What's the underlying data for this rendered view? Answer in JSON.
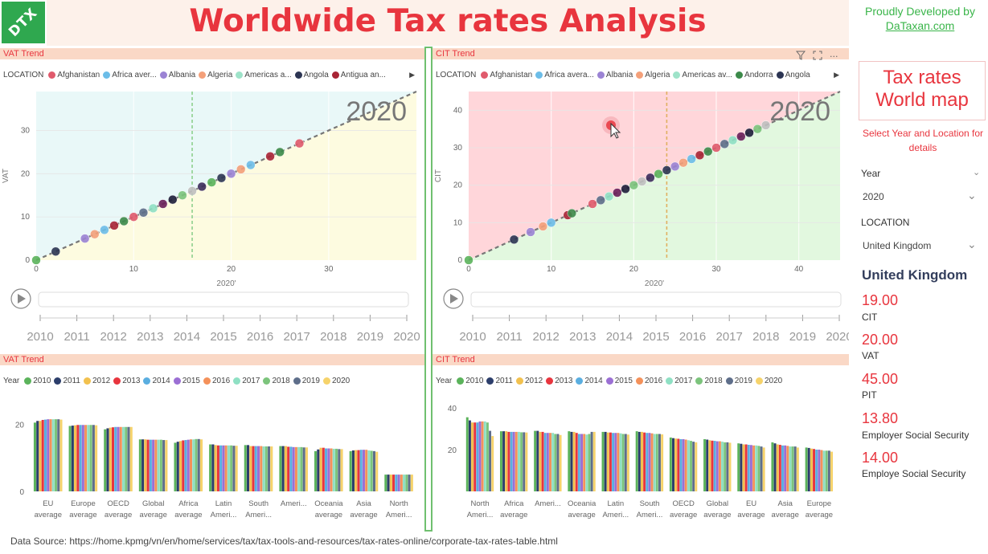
{
  "header": {
    "logo_text": "DTX",
    "title": "Worldwide Tax rates Analysis",
    "credit_line1": "Proudly Developed by",
    "credit_link": "DaTaxan.com"
  },
  "colors": {
    "accent": "#e8353e",
    "brand_green": "#3ab54a",
    "panel_header_bg": "#fad8c6",
    "title_band_bg": "#fdf1ea"
  },
  "icons": [
    "filter-icon",
    "focus-mode-icon",
    "more-options-icon",
    "play-icon",
    "chevron-down-icon",
    "chevron-right-icon"
  ],
  "panels": {
    "vat_scatter_header": "VAT Trend",
    "cit_scatter_header": "CIT Trend",
    "vat_bar_header": "VAT Trend",
    "cit_bar_header": "CIT Trend"
  },
  "legends": {
    "location_title": "LOCATION",
    "vat_locations": [
      {
        "label": "Afghanistan",
        "color": "#e05a6c"
      },
      {
        "label": "Africa aver...",
        "color": "#6cbde8"
      },
      {
        "label": "Albania",
        "color": "#9b83d4"
      },
      {
        "label": "Algeria",
        "color": "#f4a07a"
      },
      {
        "label": "Americas a...",
        "color": "#9ee3c9"
      },
      {
        "label": "Angola",
        "color": "#2c3553"
      },
      {
        "label": "Antigua an...",
        "color": "#a82435"
      }
    ],
    "cit_locations": [
      {
        "label": "Afghanistan",
        "color": "#e05a6c"
      },
      {
        "label": "Africa avera...",
        "color": "#6cbde8"
      },
      {
        "label": "Albania",
        "color": "#9b83d4"
      },
      {
        "label": "Algeria",
        "color": "#f4a07a"
      },
      {
        "label": "Americas av...",
        "color": "#9ee3c9"
      },
      {
        "label": "Andorra",
        "color": "#3c8a4a"
      },
      {
        "label": "Angola",
        "color": "#2c3553"
      }
    ],
    "year_title": "Year",
    "years": [
      {
        "label": "2010",
        "color": "#5bb35b"
      },
      {
        "label": "2011",
        "color": "#2c3e6b"
      },
      {
        "label": "2012",
        "color": "#f2c14e"
      },
      {
        "label": "2013",
        "color": "#e8353e"
      },
      {
        "label": "2014",
        "color": "#5aaee0"
      },
      {
        "label": "2015",
        "color": "#9b6fd4"
      },
      {
        "label": "2016",
        "color": "#f4915a"
      },
      {
        "label": "2017",
        "color": "#8fe0c4"
      },
      {
        "label": "2018",
        "color": "#7cc47c"
      },
      {
        "label": "2019",
        "color": "#5e6e8a"
      },
      {
        "label": "2020",
        "color": "#f6d36b"
      }
    ]
  },
  "timeline": {
    "years": [
      "2010",
      "2011",
      "2012",
      "2013",
      "2014",
      "2015",
      "2016",
      "2017",
      "2018",
      "2019",
      "2020"
    ]
  },
  "sidebar": {
    "map_title_line1": "Tax rates",
    "map_title_line2": "World map",
    "map_subtitle": "Select Year and Location for details",
    "year_label": "Year",
    "year_value": "2020",
    "location_label": "LOCATION",
    "location_value": "United Kingdom",
    "country": "United Kingdom",
    "kpis": [
      {
        "value": "19.00",
        "label": "CIT"
      },
      {
        "value": "20.00",
        "label": "VAT"
      },
      {
        "value": "45.00",
        "label": "PIT"
      },
      {
        "value": "13.80",
        "label": "Employer Social Security"
      },
      {
        "value": "14.00",
        "label": "Employe Social Security"
      }
    ]
  },
  "footer": {
    "source": "Data Source: https://home.kpmg/vn/en/home/services/tax/tax-tools-and-resources/tax-rates-online/corporate-tax-rates-table.html"
  },
  "chart_data": [
    {
      "type": "scatter",
      "title": "VAT Trend",
      "play_label": "2020",
      "xlabel": "2020'",
      "ylabel": "VAT",
      "xlim": [
        0,
        39
      ],
      "ylim": [
        0,
        39
      ],
      "xticks": [
        0,
        10,
        20,
        30
      ],
      "yticks": [
        0,
        10,
        20,
        30
      ],
      "reference_x": 16,
      "points": [
        [
          0,
          0
        ],
        [
          2,
          2
        ],
        [
          5,
          5
        ],
        [
          6,
          6
        ],
        [
          7,
          7
        ],
        [
          8,
          8
        ],
        [
          9,
          9
        ],
        [
          10,
          10
        ],
        [
          11,
          11
        ],
        [
          12,
          12
        ],
        [
          13,
          13
        ],
        [
          14,
          14
        ],
        [
          15,
          15
        ],
        [
          16,
          16
        ],
        [
          17,
          17
        ],
        [
          18,
          18
        ],
        [
          19,
          19
        ],
        [
          20,
          20
        ],
        [
          21,
          21
        ],
        [
          22,
          22
        ],
        [
          24,
          24
        ],
        [
          25,
          25
        ],
        [
          27,
          27
        ]
      ]
    },
    {
      "type": "scatter",
      "title": "CIT Trend",
      "play_label": "2020",
      "xlabel": "2020'",
      "ylabel": "CIT",
      "xlim": [
        0,
        45
      ],
      "ylim": [
        0,
        45
      ],
      "xticks": [
        0,
        10,
        20,
        30,
        40
      ],
      "yticks": [
        0,
        10,
        20,
        30,
        40
      ],
      "reference_x": 24,
      "points": [
        [
          0,
          0
        ],
        [
          5.5,
          5.5
        ],
        [
          7.5,
          7.5
        ],
        [
          9,
          9
        ],
        [
          10,
          10
        ],
        [
          12,
          12
        ],
        [
          12.5,
          12.5
        ],
        [
          15,
          15
        ],
        [
          16,
          16
        ],
        [
          17,
          17
        ],
        [
          18,
          18
        ],
        [
          19,
          19
        ],
        [
          20,
          20
        ],
        [
          21,
          21
        ],
        [
          22,
          22
        ],
        [
          23,
          23
        ],
        [
          24,
          24
        ],
        [
          25,
          25
        ],
        [
          26,
          26
        ],
        [
          27,
          27
        ],
        [
          28,
          28
        ],
        [
          29,
          29
        ],
        [
          30,
          30
        ],
        [
          31,
          31
        ],
        [
          32,
          32
        ],
        [
          33,
          33
        ],
        [
          34,
          34
        ],
        [
          35,
          35
        ],
        [
          36,
          36
        ]
      ]
    },
    {
      "type": "bar",
      "title": "VAT Trend",
      "ylim": [
        0,
        28
      ],
      "yticks": [
        0,
        20
      ],
      "categories": [
        "EU average",
        "Europe average",
        "OECD average",
        "Global average",
        "Africa average",
        "Latin Ameri...",
        "South Ameri...",
        "Ameri...",
        "Oceania average",
        "Asia average",
        "North Ameri..."
      ],
      "values_by_year": [
        [
          20.5,
          19.5,
          18.5,
          15.5,
          14.5,
          14,
          13.8,
          13.5,
          12,
          12,
          5
        ],
        [
          21,
          19.6,
          18.8,
          15.5,
          14.8,
          14,
          13.8,
          13.5,
          12.5,
          12.2,
          5
        ],
        [
          21,
          19.7,
          19,
          15.5,
          15,
          13.8,
          13.5,
          13.5,
          13,
          12.3,
          5
        ],
        [
          21.3,
          19.8,
          19.1,
          15.4,
          15.2,
          13.7,
          13.5,
          13.3,
          13,
          12.3,
          5
        ],
        [
          21.4,
          19.8,
          19.2,
          15.4,
          15.3,
          13.7,
          13.5,
          13.3,
          12.8,
          12.4,
          5
        ],
        [
          21.5,
          19.8,
          19.2,
          15.4,
          15.4,
          13.7,
          13.5,
          13.2,
          12.8,
          12.4,
          5
        ],
        [
          21.5,
          19.8,
          19.2,
          15.4,
          15.5,
          13.7,
          13.5,
          13.2,
          12.8,
          12.4,
          5
        ],
        [
          21.5,
          19.8,
          19.2,
          15.4,
          15.5,
          13.7,
          13.4,
          13.2,
          12.7,
          12.2,
          5
        ],
        [
          21.5,
          19.8,
          19.2,
          15.4,
          15.6,
          13.7,
          13.4,
          13.2,
          12.7,
          12.1,
          5
        ],
        [
          21.5,
          19.8,
          19.2,
          15.3,
          15.6,
          13.6,
          13.4,
          13.1,
          12.6,
          12,
          5
        ],
        [
          21.4,
          19.7,
          19.2,
          15.3,
          15.5,
          13.6,
          13.4,
          13.1,
          12.6,
          11.8,
          5
        ]
      ]
    },
    {
      "type": "bar",
      "title": "CIT Trend",
      "ylim": [
        0,
        45
      ],
      "yticks": [
        20,
        40
      ],
      "categories": [
        "North Ameri...",
        "Africa average",
        "Ameri...",
        "Oceania average",
        "Latin Ameri...",
        "South Ameri...",
        "OECD average",
        "Global average",
        "EU average",
        "Asia average",
        "Europe average"
      ],
      "values_by_year": [
        [
          35.5,
          28.8,
          29,
          28.8,
          28.5,
          28.8,
          25.8,
          25,
          23,
          23.5,
          21
        ],
        [
          34,
          28.8,
          29,
          28.5,
          28.5,
          28.5,
          25.5,
          24.8,
          22.8,
          23,
          20.8
        ],
        [
          33,
          28.8,
          28.5,
          28.5,
          28.2,
          28.5,
          25.3,
          24.5,
          22.5,
          22.5,
          20.5
        ],
        [
          33,
          28.5,
          28.5,
          28,
          28.2,
          28.2,
          25.2,
          24.3,
          22.5,
          22.3,
          20.3
        ],
        [
          33,
          28.5,
          28,
          27.5,
          28,
          28,
          25,
          24.2,
          22.3,
          22,
          20
        ],
        [
          33.5,
          28.5,
          28,
          27.5,
          28,
          28,
          25,
          24,
          22.2,
          22,
          20
        ],
        [
          33.5,
          28.5,
          28,
          27.5,
          28,
          27.8,
          24.8,
          24,
          22,
          21.8,
          19.8
        ],
        [
          33.5,
          28.5,
          28,
          27.2,
          27.8,
          27.5,
          24.5,
          23.8,
          22,
          21.5,
          19.5
        ],
        [
          33,
          28.3,
          27.5,
          27.5,
          27.5,
          27.5,
          24.2,
          23.5,
          21.8,
          21.5,
          19.5
        ],
        [
          29,
          28.3,
          27.5,
          28.5,
          27.5,
          27.5,
          23.8,
          23.5,
          21.5,
          21.5,
          19.5
        ],
        [
          26.5,
          28.2,
          27,
          28.5,
          27.2,
          27.3,
          23.5,
          23.3,
          21,
          21,
          19
        ]
      ]
    }
  ]
}
